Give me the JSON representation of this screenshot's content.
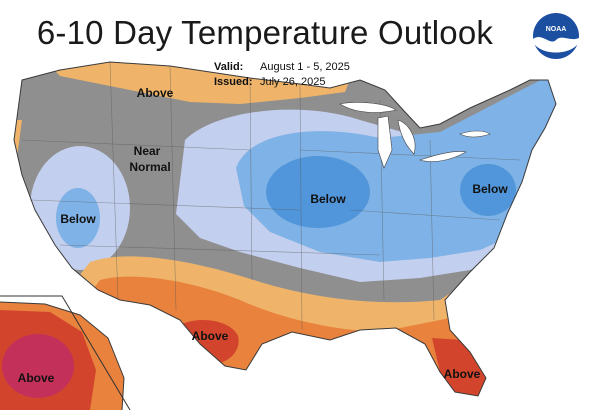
{
  "title": "6-10 Day Temperature Outlook",
  "valid_label": "Valid:",
  "valid_value": "August 1 - 5, 2025",
  "issued_label": "Issued:",
  "issued_value": "July 26, 2025",
  "logo_text": "NOAA",
  "labels": {
    "above_northwest": "Above",
    "near_normal_line1": "Near",
    "near_normal_line2": "Normal",
    "below_west": "Below",
    "below_midwest": "Below",
    "below_east": "Below",
    "above_texas": "Above",
    "above_florida": "Above",
    "above_alaska": "Above"
  },
  "colors": {
    "near_normal": "#8f8f8f",
    "below_light": "#c3cfee",
    "below_mid": "#7fb2e6",
    "below_dark": "#5196da",
    "above_light": "#efb46a",
    "above_mid": "#e8823d",
    "above_dark": "#d2452c",
    "above_darkest": "#c3305a"
  }
}
